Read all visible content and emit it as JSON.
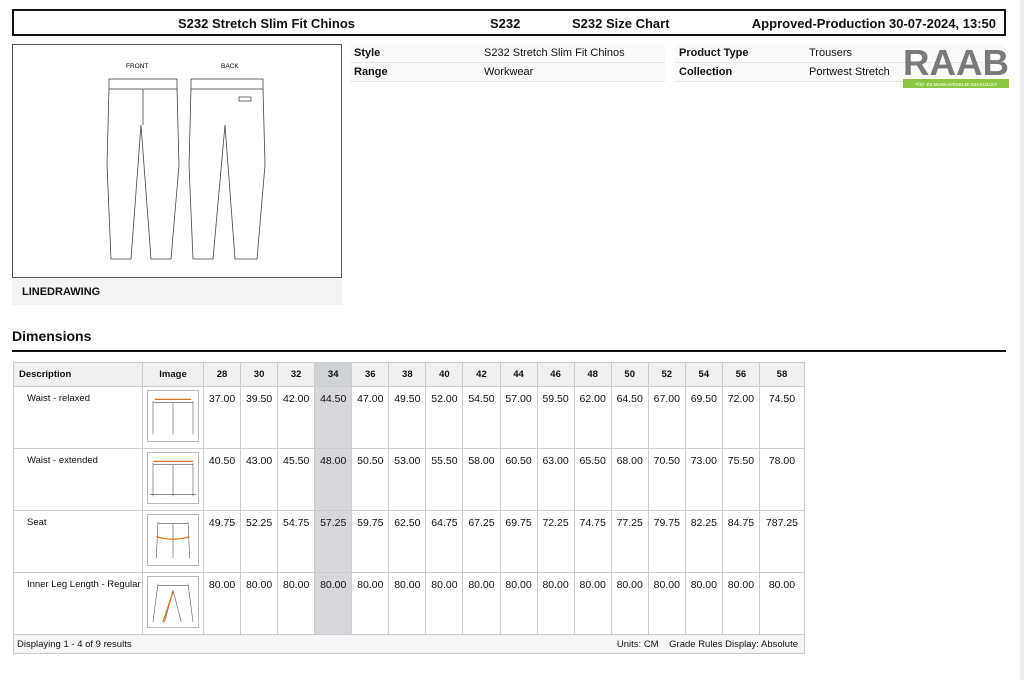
{
  "header": {
    "title": "S232 Stretch Slim Fit Chinos",
    "code": "S232",
    "chart": "S232 Size Chart",
    "status": "Approved-Production 30-07-2024, 13:50"
  },
  "drawing": {
    "front_label": "FRONT",
    "back_label": "BACK",
    "caption": "LINEDRAWING"
  },
  "info": {
    "style_label": "Style",
    "style": "S232 Stretch Slim Fit Chinos",
    "range_label": "Range",
    "range": "Workwear",
    "type_label": "Product Type",
    "type": "Trousers",
    "collection_label": "Collection",
    "collection": "Portwest Stretch"
  },
  "logo": {
    "text": "RAAB",
    "tagline": "TŰZ- ÉS MUNKAVÉDELMI SZAKÜZLET",
    "colors": {
      "gray": "#7a7a7a",
      "green": "#8cc63f"
    }
  },
  "dimensions": {
    "title": "Dimensions",
    "col_description": "Description",
    "col_image": "Image",
    "sizes": [
      "28",
      "30",
      "32",
      "34",
      "36",
      "38",
      "40",
      "42",
      "44",
      "46",
      "48",
      "50",
      "52",
      "54",
      "56",
      "58"
    ],
    "selected_size": "34",
    "rows": [
      {
        "description": "Waist - relaxed",
        "values": [
          "37.00",
          "39.50",
          "42.00",
          "44.50",
          "47.00",
          "49.50",
          "52.00",
          "54.50",
          "57.00",
          "59.50",
          "62.00",
          "64.50",
          "67.00",
          "69.50",
          "72.00",
          "74.50"
        ]
      },
      {
        "description": "Waist - extended",
        "values": [
          "40.50",
          "43.00",
          "45.50",
          "48.00",
          "50.50",
          "53.00",
          "55.50",
          "58.00",
          "60.50",
          "63.00",
          "65.50",
          "68.00",
          "70.50",
          "73.00",
          "75.50",
          "78.00"
        ]
      },
      {
        "description": "Seat",
        "values": [
          "49.75",
          "52.25",
          "54.75",
          "57.25",
          "59.75",
          "62.50",
          "64.75",
          "67.25",
          "69.75",
          "72.25",
          "74.75",
          "77.25",
          "79.75",
          "82.25",
          "84.75",
          "787.25"
        ]
      },
      {
        "description": "Inner Leg Length - Regular",
        "values": [
          "80.00",
          "80.00",
          "80.00",
          "80.00",
          "80.00",
          "80.00",
          "80.00",
          "80.00",
          "80.00",
          "80.00",
          "80.00",
          "80.00",
          "80.00",
          "80.00",
          "80.00",
          "80.00"
        ]
      }
    ],
    "footer_left": "Displaying 1 - 4 of 9 results",
    "units": "Units: CM",
    "grade_rules": "Grade Rules Display: Absolute"
  }
}
